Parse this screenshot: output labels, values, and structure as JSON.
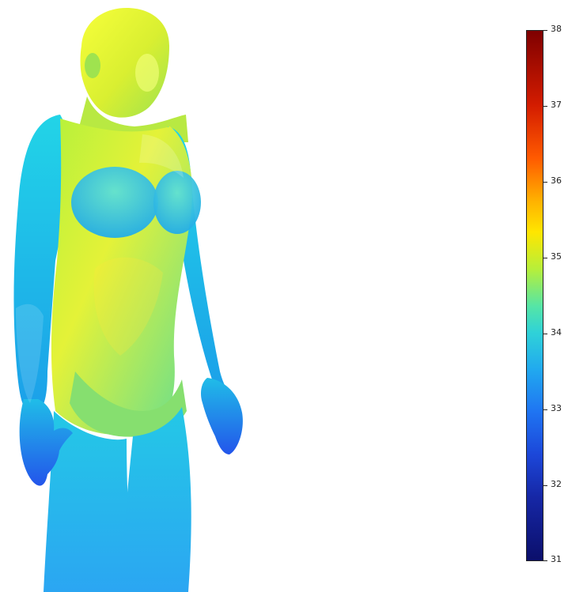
{
  "colorbar": {
    "min": 31,
    "max": 38,
    "ticks": [
      "38",
      "37",
      "36",
      "35",
      "34",
      "33",
      "32",
      "31"
    ]
  },
  "figure": {
    "name": "human-body-temperature-distribution"
  }
}
